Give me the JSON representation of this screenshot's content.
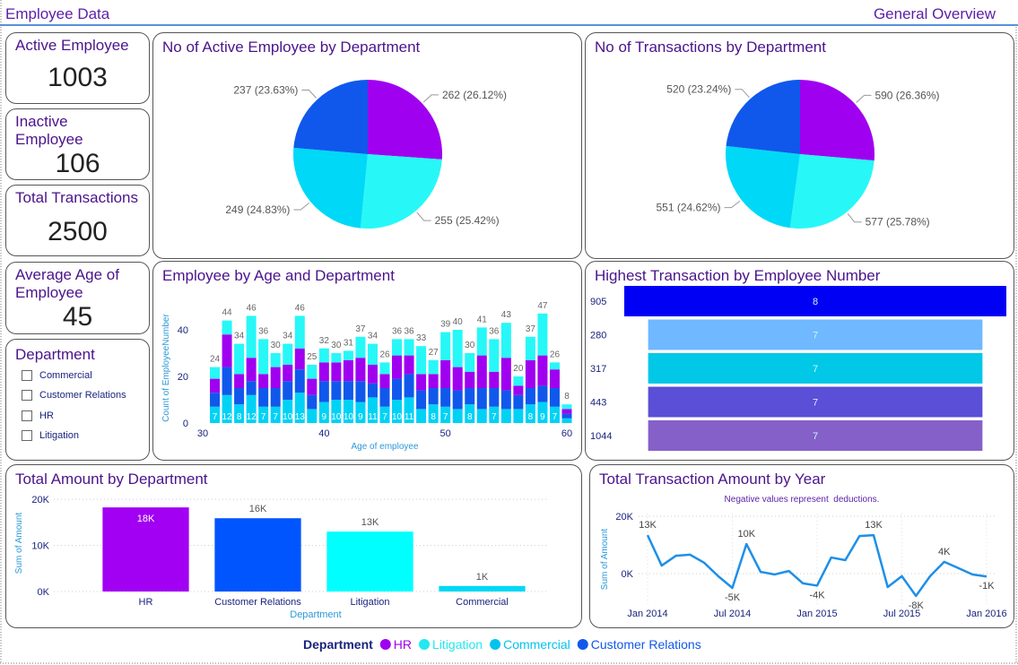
{
  "header": {
    "title": "Employee Data",
    "subtitle": "General Overview"
  },
  "cards": [
    {
      "label": "Active Employee",
      "value": 1003
    },
    {
      "label": "Inactive Employee",
      "value": 106
    },
    {
      "label": "Total Transactions",
      "value": 2500
    },
    {
      "label": "Average Age of Employee",
      "value": 45
    }
  ],
  "slicer": {
    "title": "Department",
    "options": [
      "Commercial",
      "Customer Relations",
      "HR",
      "Litigation"
    ]
  },
  "legend": {
    "title": "Department",
    "items": [
      {
        "name": "HR",
        "color": "#a000f0"
      },
      {
        "name": "Litigation",
        "color": "#22e8f0"
      },
      {
        "name": "Commercial",
        "color": "#00c4ee"
      },
      {
        "name": "Customer Relations",
        "color": "#1058ec"
      }
    ]
  },
  "chart_data": [
    {
      "type": "pie",
      "title": "No of Active Employee by Department",
      "values": [
        262,
        255,
        249,
        237
      ],
      "value_labels": [
        "262 (26.12%)",
        "255 (25.42%)",
        "249 (24.83%)",
        "237 (23.63%)"
      ],
      "colors": [
        "#a000f0",
        "#28f7f7",
        "#00d8f8",
        "#1058ec"
      ]
    },
    {
      "type": "pie",
      "title": "No of Transactions by Department",
      "values": [
        590,
        577,
        551,
        520
      ],
      "value_labels": [
        "590 (26.36%)",
        "577 (25.78%)",
        "551 (24.62%)",
        "520 (23.24%)"
      ],
      "colors": [
        "#a000f0",
        "#28f7f7",
        "#00d8f8",
        "#1058ec"
      ]
    },
    {
      "type": "stacked_bar",
      "title": "Employee by Age and Department",
      "x": [
        31,
        32,
        33,
        34,
        35,
        36,
        37,
        38,
        39,
        40,
        41,
        42,
        43,
        44,
        45,
        46,
        47,
        48,
        49,
        50,
        51,
        52,
        53,
        54,
        55,
        56,
        57,
        58,
        59,
        60
      ],
      "xlim": [
        30,
        60
      ],
      "xticks": [
        30,
        40,
        50,
        60
      ],
      "ylim": [
        0,
        55
      ],
      "yticks": [
        0,
        20,
        40
      ],
      "x_label": "Age of employee",
      "y_label": "Count of EmployeeNumber",
      "series": [
        {
          "name": "Commercial",
          "color": "#00d2f5",
          "values": [
            7,
            12,
            8,
            12,
            7,
            7,
            10,
            13,
            6,
            9,
            10,
            10,
            9,
            11,
            7,
            10,
            11,
            6,
            8,
            7,
            6,
            8,
            6,
            7,
            6,
            6,
            8,
            9,
            7,
            2
          ]
        },
        {
          "name": "Customer Relations",
          "color": "#1058ec",
          "values": [
            6,
            12,
            7,
            6,
            8,
            8,
            8,
            10,
            6,
            9,
            8,
            8,
            9,
            6,
            8,
            9,
            10,
            8,
            7,
            8,
            8,
            7,
            9,
            8,
            8,
            6,
            7,
            7,
            8,
            2
          ]
        },
        {
          "name": "HR",
          "color": "#a000f0",
          "values": [
            6,
            14,
            6,
            10,
            6,
            9,
            7,
            9,
            7,
            8,
            8,
            9,
            10,
            8,
            6,
            10,
            8,
            7,
            6,
            12,
            10,
            7,
            14,
            7,
            14,
            4,
            12,
            13,
            8,
            2
          ]
        },
        {
          "name": "Litigation",
          "color": "#28f7f7",
          "values": [
            5,
            6,
            13,
            18,
            15,
            6,
            9,
            14,
            6,
            6,
            4,
            4,
            9,
            9,
            5,
            7,
            7,
            12,
            6,
            12,
            16,
            8,
            12,
            14,
            15,
            4,
            10,
            18,
            3,
            2
          ]
        }
      ],
      "totals": [
        24,
        44,
        34,
        46,
        36,
        30,
        34,
        46,
        25,
        32,
        30,
        31,
        37,
        34,
        26,
        36,
        36,
        33,
        27,
        39,
        40,
        30,
        41,
        36,
        43,
        20,
        37,
        47,
        26,
        8
      ]
    },
    {
      "type": "funnel",
      "title": "Highest Transaction by Employee Number",
      "categories": [
        "905",
        "280",
        "317",
        "443",
        "1044"
      ],
      "values": [
        8,
        7,
        7,
        7,
        7
      ],
      "colors": [
        "#0000f5",
        "#70b8ff",
        "#00c8e6",
        "#5a4fd6",
        "#8560c8"
      ]
    },
    {
      "type": "bar",
      "title": "Total Amount by Department",
      "categories": [
        "HR",
        "Customer Relations",
        "Litigation",
        "Commercial"
      ],
      "values": [
        18250,
        15900,
        13000,
        1200
      ],
      "value_labels": [
        "18K",
        "16K",
        "13K",
        "1K"
      ],
      "colors": [
        "#a100f2",
        "#0055ff",
        "#00ffff",
        "#00d8f5"
      ],
      "ylim": [
        0,
        21000
      ],
      "yticks": [
        {
          "value": 0,
          "label": "0K"
        },
        {
          "value": 10000,
          "label": "10K"
        },
        {
          "value": 20000,
          "label": "20K"
        }
      ],
      "x_label": "Department",
      "y_label": "Sum of Amount",
      "grid": true
    },
    {
      "type": "line",
      "title": "Total Transaction Amount by Year",
      "subtitle": "Negative values represent  deductions.",
      "x": [
        "2014-01",
        "2014-02",
        "2014-03",
        "2014-04",
        "2014-05",
        "2014-06",
        "2014-07",
        "2014-08",
        "2014-09",
        "2014-10",
        "2014-11",
        "2014-12",
        "2015-01",
        "2015-02",
        "2015-03",
        "2015-04",
        "2015-05",
        "2015-06",
        "2015-07",
        "2015-08",
        "2015-09",
        "2015-10",
        "2015-11",
        "2015-12",
        "2016-01"
      ],
      "values": [
        13400,
        2800,
        6200,
        6600,
        3800,
        -900,
        -5000,
        10300,
        600,
        -300,
        900,
        -3400,
        -4200,
        5600,
        4700,
        13100,
        13400,
        -4700,
        -900,
        -7800,
        -900,
        4100,
        1900,
        -300,
        -1000
      ],
      "value_labels": [
        "13K",
        null,
        null,
        null,
        null,
        null,
        "-5K",
        "10K",
        null,
        null,
        null,
        null,
        "-4K",
        null,
        null,
        null,
        "13K",
        null,
        null,
        "-8K",
        null,
        "4K",
        null,
        null,
        "-1K"
      ],
      "color": "#1e8fe8",
      "xlim": [
        "2014-01",
        "2016-01"
      ],
      "xticks": [
        {
          "value": "2014-01",
          "label": "Jan 2014"
        },
        {
          "value": "2014-07",
          "label": "Jul 2014"
        },
        {
          "value": "2015-01",
          "label": "Jan 2015"
        },
        {
          "value": "2015-07",
          "label": "Jul 2015"
        },
        {
          "value": "2016-01",
          "label": "Jan 2016"
        }
      ],
      "ylim": [
        -11000,
        21000
      ],
      "yticks": [
        {
          "value": 0,
          "label": "0K"
        },
        {
          "value": 20000,
          "label": "20K"
        }
      ],
      "y_label": "Sum of Amount",
      "grid": true
    }
  ]
}
